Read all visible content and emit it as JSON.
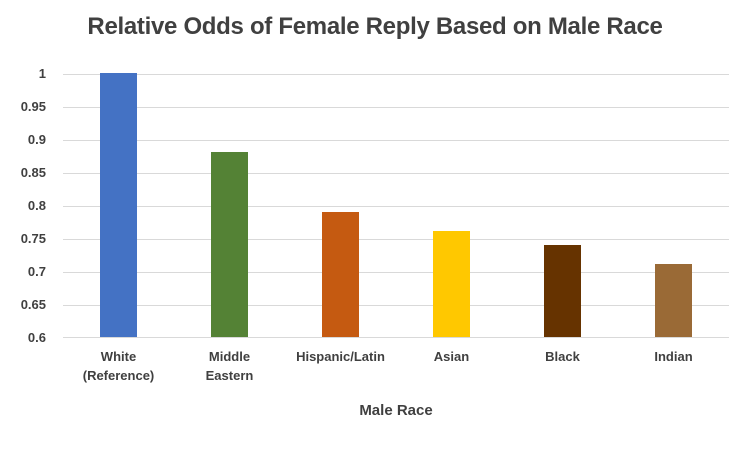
{
  "chart_data": {
    "type": "bar",
    "title": "Relative Odds of Female Reply Based on Male Race",
    "xlabel": "Male Race",
    "ylabel": "",
    "categories": [
      "White (Reference)",
      "Middle Eastern",
      "Hispanic/Latin",
      "Asian",
      "Black",
      "Indian"
    ],
    "category_lines": [
      [
        "White",
        "(Reference)"
      ],
      [
        "Middle",
        "Eastern"
      ],
      [
        "Hispanic/Latin"
      ],
      [
        "Asian"
      ],
      [
        "Black"
      ],
      [
        "Indian"
      ]
    ],
    "values": [
      1,
      0.88,
      0.79,
      0.76,
      0.74,
      0.71
    ],
    "bar_colors": [
      "#4472C4",
      "#548235",
      "#C55A11",
      "#FFC800",
      "#663300",
      "#9A6A36"
    ],
    "ylim": [
      0.6,
      1.0
    ],
    "yticks": [
      "1",
      "0.95",
      "0.9",
      "0.85",
      "0.8",
      "0.75",
      "0.7",
      "0.65",
      "0.6"
    ],
    "ytick_values": [
      1,
      0.95,
      0.9,
      0.85,
      0.8,
      0.75,
      0.7,
      0.65,
      0.6
    ],
    "grid": true,
    "legend": false,
    "colors": {
      "text": "#404040",
      "gridline": "#D9D9D9",
      "axis_line": "#D9D9D9",
      "background": "#FFFFFF"
    }
  }
}
